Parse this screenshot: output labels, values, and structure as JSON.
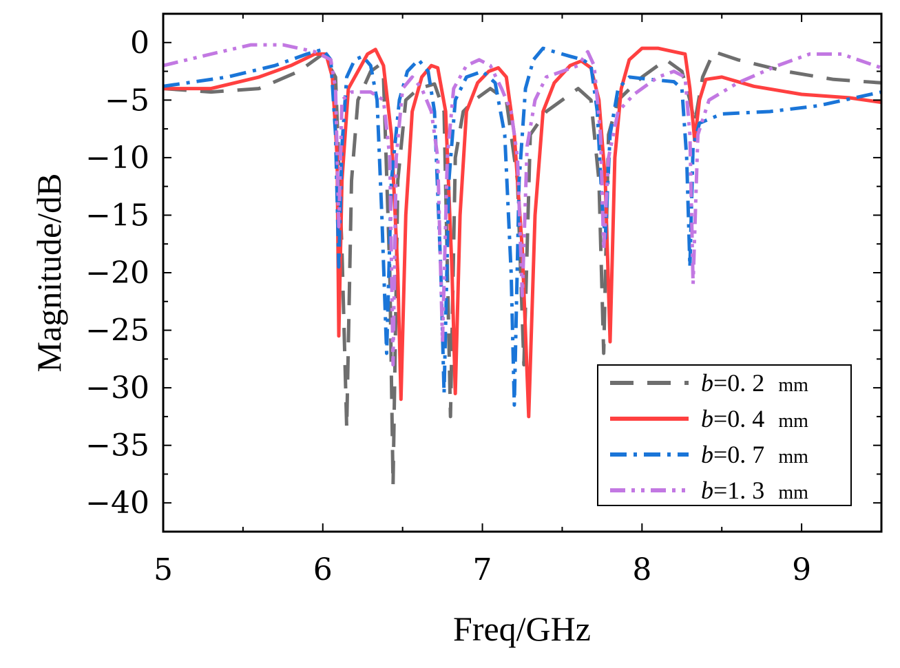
{
  "chart_data": {
    "type": "line",
    "title": "",
    "xlabel": "Freq/GHz",
    "ylabel": "Magnitude/dB",
    "xlim": [
      5,
      9.5
    ],
    "ylim": [
      -42.5,
      2.5
    ],
    "xticks": [
      5,
      6,
      7,
      8,
      9
    ],
    "yticks": [
      0,
      -5,
      -10,
      -15,
      -20,
      -25,
      -30,
      -35,
      -40
    ],
    "xtick_labels": [
      "5",
      "6",
      "7",
      "8",
      "9"
    ],
    "ytick_labels": [
      "0",
      "−5",
      "−10",
      "−15",
      "−20",
      "−25",
      "−30",
      "−35",
      "−40"
    ],
    "legend_position": "bottom-right",
    "legend_var": "b",
    "series": [
      {
        "name": "b=0.2 mm",
        "label_value": "=0. 2",
        "label_unit": "mm",
        "color": "#6e6e6e",
        "dash": "long-dash",
        "points": [
          [
            5,
            -4
          ],
          [
            5.3,
            -4.3
          ],
          [
            5.6,
            -4
          ],
          [
            5.85,
            -2.5
          ],
          [
            6.0,
            -1
          ],
          [
            6.08,
            -3
          ],
          [
            6.12,
            -18
          ],
          [
            6.15,
            -33.5
          ],
          [
            6.18,
            -12
          ],
          [
            6.22,
            -5
          ],
          [
            6.3,
            -2.5
          ],
          [
            6.35,
            -2
          ],
          [
            6.38,
            -3
          ],
          [
            6.42,
            -20
          ],
          [
            6.44,
            -38.5
          ],
          [
            6.47,
            -12
          ],
          [
            6.52,
            -5
          ],
          [
            6.6,
            -4
          ],
          [
            6.7,
            -3.6
          ],
          [
            6.76,
            -6
          ],
          [
            6.8,
            -32.5
          ],
          [
            6.83,
            -10
          ],
          [
            6.88,
            -6
          ],
          [
            6.95,
            -5
          ],
          [
            7.05,
            -4
          ],
          [
            7.15,
            -5
          ],
          [
            7.22,
            -12
          ],
          [
            7.26,
            -28
          ],
          [
            7.3,
            -8
          ],
          [
            7.4,
            -6
          ],
          [
            7.5,
            -5
          ],
          [
            7.6,
            -4
          ],
          [
            7.68,
            -5
          ],
          [
            7.73,
            -12
          ],
          [
            7.76,
            -27
          ],
          [
            7.79,
            -8
          ],
          [
            7.85,
            -5
          ],
          [
            8.0,
            -3
          ],
          [
            8.15,
            -1.5
          ],
          [
            8.25,
            -2.5
          ],
          [
            8.3,
            -5
          ],
          [
            8.33,
            -7
          ],
          [
            8.38,
            -3
          ],
          [
            8.45,
            -0.8
          ],
          [
            8.6,
            -1.5
          ],
          [
            8.9,
            -2.5
          ],
          [
            9.2,
            -3.2
          ],
          [
            9.5,
            -3.5
          ]
        ]
      },
      {
        "name": "b=0.4 mm",
        "label_value": "=0. 4",
        "label_unit": "mm",
        "color": "#ff4040",
        "dash": "solid",
        "points": [
          [
            5,
            -4
          ],
          [
            5.3,
            -4
          ],
          [
            5.6,
            -3
          ],
          [
            5.8,
            -2
          ],
          [
            5.95,
            -1
          ],
          [
            6.02,
            -1
          ],
          [
            6.06,
            -3
          ],
          [
            6.09,
            -10
          ],
          [
            6.1,
            -25.5
          ],
          [
            6.12,
            -12
          ],
          [
            6.16,
            -4
          ],
          [
            6.22,
            -2.5
          ],
          [
            6.28,
            -1
          ],
          [
            6.33,
            -0.6
          ],
          [
            6.38,
            -2
          ],
          [
            6.43,
            -8
          ],
          [
            6.47,
            -20
          ],
          [
            6.49,
            -31
          ],
          [
            6.52,
            -15
          ],
          [
            6.56,
            -6
          ],
          [
            6.62,
            -3
          ],
          [
            6.68,
            -2
          ],
          [
            6.72,
            -2.2
          ],
          [
            6.77,
            -6
          ],
          [
            6.81,
            -20
          ],
          [
            6.83,
            -30.5
          ],
          [
            6.86,
            -15
          ],
          [
            6.9,
            -6
          ],
          [
            6.97,
            -3.5
          ],
          [
            7.04,
            -2.5
          ],
          [
            7.1,
            -2.2
          ],
          [
            7.15,
            -3
          ],
          [
            7.2,
            -8
          ],
          [
            7.25,
            -18
          ],
          [
            7.29,
            -32.5
          ],
          [
            7.33,
            -15
          ],
          [
            7.38,
            -6
          ],
          [
            7.45,
            -3.5
          ],
          [
            7.55,
            -2
          ],
          [
            7.62,
            -1.6
          ],
          [
            7.68,
            -2.2
          ],
          [
            7.73,
            -5
          ],
          [
            7.77,
            -12
          ],
          [
            7.8,
            -26
          ],
          [
            7.83,
            -10
          ],
          [
            7.87,
            -4
          ],
          [
            7.92,
            -1.5
          ],
          [
            8.0,
            -0.5
          ],
          [
            8.1,
            -0.5
          ],
          [
            8.2,
            -0.8
          ],
          [
            8.27,
            -1
          ],
          [
            8.3,
            -4
          ],
          [
            8.33,
            -8.5
          ],
          [
            8.36,
            -5
          ],
          [
            8.4,
            -3.2
          ],
          [
            8.5,
            -3
          ],
          [
            8.7,
            -3.8
          ],
          [
            9.0,
            -4.5
          ],
          [
            9.3,
            -4.8
          ],
          [
            9.5,
            -5.2
          ]
        ]
      },
      {
        "name": "b=0.7 mm",
        "label_value": "=0. 7",
        "label_unit": "mm",
        "color": "#1a75d8",
        "dash": "dash-dot",
        "points": [
          [
            5,
            -3.8
          ],
          [
            5.4,
            -3
          ],
          [
            5.7,
            -2
          ],
          [
            5.9,
            -1
          ],
          [
            6.0,
            -0.6
          ],
          [
            6.05,
            -1.5
          ],
          [
            6.08,
            -8
          ],
          [
            6.1,
            -19.5
          ],
          [
            6.12,
            -9
          ],
          [
            6.15,
            -3
          ],
          [
            6.2,
            -1.5
          ],
          [
            6.25,
            -1.2
          ],
          [
            6.3,
            -2
          ],
          [
            6.34,
            -5
          ],
          [
            6.37,
            -15
          ],
          [
            6.4,
            -27
          ],
          [
            6.43,
            -12
          ],
          [
            6.48,
            -5
          ],
          [
            6.53,
            -2.5
          ],
          [
            6.6,
            -1.5
          ],
          [
            6.66,
            -2.5
          ],
          [
            6.7,
            -6
          ],
          [
            6.74,
            -20
          ],
          [
            6.76,
            -30.5
          ],
          [
            6.79,
            -12
          ],
          [
            6.83,
            -5
          ],
          [
            6.9,
            -3
          ],
          [
            7.0,
            -2.5
          ],
          [
            7.08,
            -3.5
          ],
          [
            7.14,
            -8
          ],
          [
            7.18,
            -20
          ],
          [
            7.2,
            -31.5
          ],
          [
            7.23,
            -12
          ],
          [
            7.27,
            -4
          ],
          [
            7.32,
            -1.5
          ],
          [
            7.38,
            -0.5
          ],
          [
            7.45,
            -0.8
          ],
          [
            7.55,
            -1.2
          ],
          [
            7.63,
            -1.5
          ],
          [
            7.68,
            -2
          ],
          [
            7.72,
            -6
          ],
          [
            7.75,
            -14
          ],
          [
            7.77,
            -17
          ],
          [
            7.8,
            -8
          ],
          [
            7.85,
            -4
          ],
          [
            7.92,
            -3
          ],
          [
            8.05,
            -3.2
          ],
          [
            8.2,
            -3.4
          ],
          [
            8.25,
            -4
          ],
          [
            8.28,
            -10
          ],
          [
            8.3,
            -19.5
          ],
          [
            8.32,
            -9
          ],
          [
            8.36,
            -7
          ],
          [
            8.5,
            -6.2
          ],
          [
            8.8,
            -6
          ],
          [
            9.1,
            -5.5
          ],
          [
            9.5,
            -4.3
          ]
        ]
      },
      {
        "name": "b=1.3 mm",
        "label_value": "=1. 3",
        "label_unit": "mm",
        "color": "#c278e2",
        "dash": "dash-dot-dot",
        "points": [
          [
            5,
            -2
          ],
          [
            5.3,
            -1
          ],
          [
            5.55,
            -0.2
          ],
          [
            5.75,
            -0.2
          ],
          [
            5.95,
            -0.8
          ],
          [
            6.05,
            -1.5
          ],
          [
            6.08,
            -4
          ],
          [
            6.1,
            -16
          ],
          [
            6.12,
            -5
          ],
          [
            6.18,
            -4.3
          ],
          [
            6.3,
            -4.3
          ],
          [
            6.38,
            -5
          ],
          [
            6.42,
            -10
          ],
          [
            6.44,
            -28
          ],
          [
            6.46,
            -10
          ],
          [
            6.5,
            -4
          ],
          [
            6.56,
            -3
          ],
          [
            6.62,
            -4
          ],
          [
            6.68,
            -6
          ],
          [
            6.72,
            -10
          ],
          [
            6.75,
            -26
          ],
          [
            6.78,
            -10
          ],
          [
            6.82,
            -4
          ],
          [
            6.9,
            -2
          ],
          [
            6.98,
            -1.5
          ],
          [
            7.05,
            -2
          ],
          [
            7.12,
            -4
          ],
          [
            7.18,
            -6
          ],
          [
            7.22,
            -10
          ],
          [
            7.25,
            -22
          ],
          [
            7.28,
            -9
          ],
          [
            7.33,
            -5
          ],
          [
            7.4,
            -3
          ],
          [
            7.5,
            -2.5
          ],
          [
            7.6,
            -2
          ],
          [
            7.66,
            -0.8
          ],
          [
            7.7,
            -2
          ],
          [
            7.74,
            -8
          ],
          [
            7.76,
            -18
          ],
          [
            7.79,
            -10
          ],
          [
            7.85,
            -6
          ],
          [
            7.95,
            -4.5
          ],
          [
            8.1,
            -3
          ],
          [
            8.2,
            -2.5
          ],
          [
            8.27,
            -3
          ],
          [
            8.3,
            -8
          ],
          [
            8.32,
            -21
          ],
          [
            8.35,
            -8
          ],
          [
            8.42,
            -5
          ],
          [
            8.6,
            -3.5
          ],
          [
            8.85,
            -2
          ],
          [
            9.05,
            -1
          ],
          [
            9.25,
            -1
          ],
          [
            9.5,
            -2.2
          ]
        ]
      }
    ]
  }
}
